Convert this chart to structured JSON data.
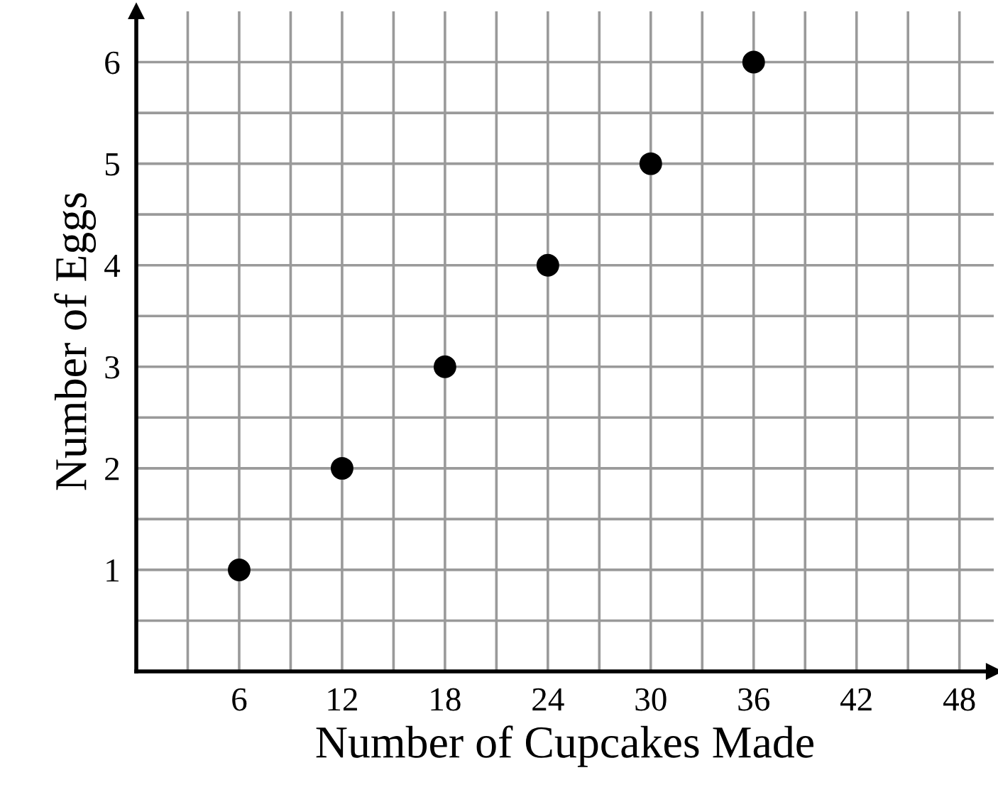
{
  "chart_data": {
    "type": "scatter",
    "xlabel": "Number of Cupcakes Made",
    "ylabel": "Number of Eggs",
    "x": [
      6,
      12,
      18,
      24,
      30,
      36
    ],
    "series": [
      {
        "color": "#000000",
        "values": [
          1,
          2,
          3,
          4,
          5,
          6
        ]
      }
    ],
    "xlim": [
      0,
      50
    ],
    "ylim": [
      0,
      6.5
    ],
    "xticks": [
      {
        "value": 3,
        "label": null
      },
      6,
      {
        "value": 9,
        "label": null
      },
      12,
      {
        "value": 15,
        "label": null
      },
      18,
      {
        "value": 21,
        "label": null
      },
      24,
      {
        "value": 27,
        "label": null
      },
      30,
      {
        "value": 33,
        "label": null
      },
      36,
      {
        "value": 39,
        "label": null
      },
      42,
      {
        "value": 45,
        "label": null
      },
      48
    ],
    "yticks": [
      {
        "value": 0.5,
        "label": null
      },
      1,
      {
        "value": 1.5,
        "label": null
      },
      2,
      {
        "value": 2.5,
        "label": null
      },
      3,
      {
        "value": 3.5,
        "label": null
      },
      4,
      {
        "value": 4.5,
        "label": null
      },
      5,
      {
        "value": 5.5,
        "label": null
      },
      6
    ],
    "grid": true,
    "marker": "circle",
    "legend": false
  }
}
